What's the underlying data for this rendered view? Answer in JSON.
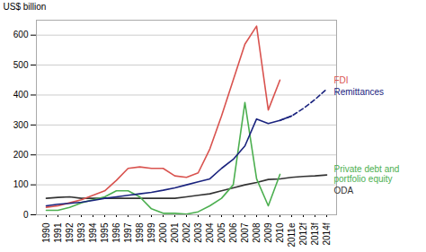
{
  "chart_data": {
    "type": "line",
    "y_label": "US$ billion",
    "categories": [
      "1990",
      "1991",
      "1992",
      "1993",
      "1994",
      "1995",
      "1996",
      "1997",
      "1998",
      "1999",
      "2000",
      "2001",
      "2002",
      "2003",
      "2004",
      "2005",
      "2006",
      "2007",
      "2008",
      "2009",
      "2010",
      "2011e",
      "2012f",
      "2013f",
      "2014f"
    ],
    "series": [
      {
        "name": "ODA",
        "color": "#333333",
        "line_style": "solid",
        "values": [
          55,
          58,
          60,
          55,
          55,
          55,
          55,
          55,
          55,
          55,
          55,
          55,
          60,
          65,
          70,
          80,
          90,
          100,
          108,
          118,
          120,
          125,
          128,
          130,
          133
        ]
      },
      {
        "name": "Private debt and\nportfolio equity",
        "color": "#4caf50",
        "line_style": "solid",
        "values": [
          15,
          15,
          25,
          40,
          50,
          60,
          80,
          80,
          60,
          20,
          5,
          5,
          2,
          10,
          30,
          55,
          100,
          375,
          120,
          30,
          135,
          null,
          null,
          null,
          null
        ]
      },
      {
        "name": "FDI",
        "color": "#d9534f",
        "line_style": "solid",
        "values": [
          25,
          30,
          40,
          50,
          65,
          80,
          115,
          155,
          160,
          155,
          155,
          130,
          125,
          140,
          220,
          330,
          450,
          570,
          630,
          350,
          450,
          null,
          null,
          null,
          null
        ]
      },
      {
        "name": "Remittances",
        "color": "#1a237e",
        "line_style": "solid",
        "values": [
          30,
          35,
          38,
          42,
          48,
          55,
          60,
          65,
          70,
          75,
          82,
          90,
          100,
          110,
          120,
          155,
          185,
          230,
          320,
          305,
          315,
          330,
          null,
          null,
          null
        ]
      },
      {
        "name": "Remittances",
        "color": "#1a237e",
        "line_style": "dashed",
        "values": [
          null,
          null,
          null,
          null,
          null,
          null,
          null,
          null,
          null,
          null,
          null,
          null,
          null,
          null,
          null,
          null,
          null,
          null,
          null,
          null,
          315,
          330,
          355,
          385,
          420
        ]
      }
    ],
    "ylim": [
      0,
      650
    ],
    "yticks": [
      0,
      100,
      200,
      300,
      400,
      500,
      600
    ],
    "grid": true
  }
}
